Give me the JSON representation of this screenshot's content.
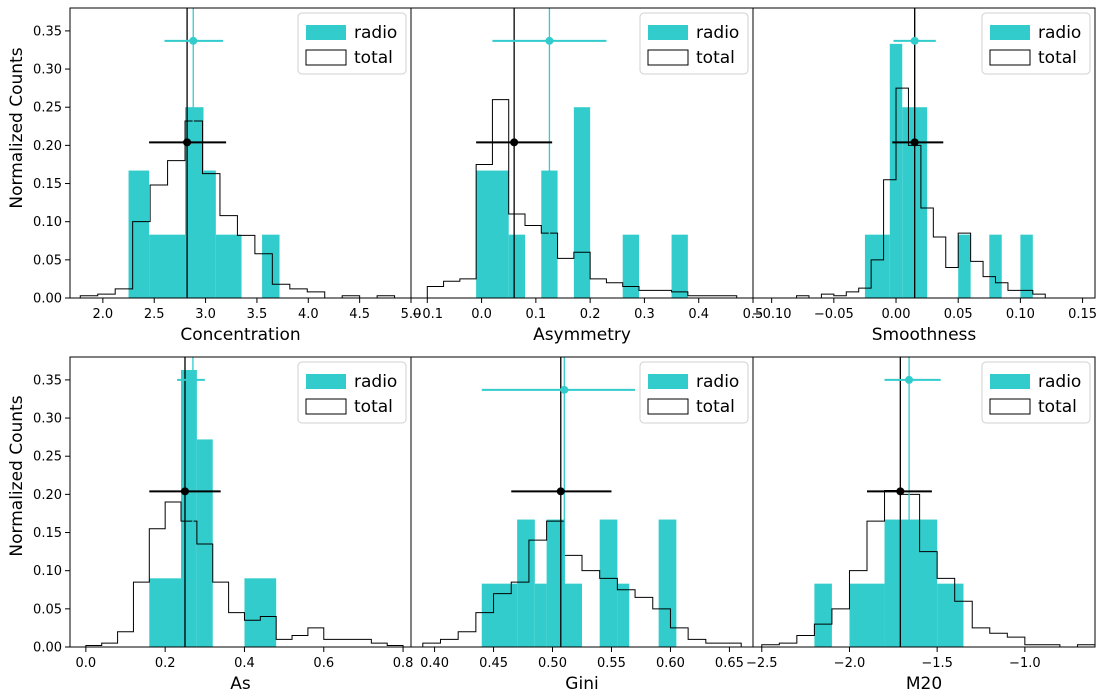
{
  "colors": {
    "radio": "#33cccc",
    "total": "#000000",
    "axis": "#000000"
  },
  "legend": {
    "radio_label": "radio",
    "total_label": "total"
  },
  "shared_ylabel": "Normalized Counts",
  "y_ticks": [
    "0.00",
    "0.05",
    "0.10",
    "0.15",
    "0.20",
    "0.25",
    "0.30",
    "0.35"
  ],
  "chart_data": [
    {
      "type": "histogram",
      "xlabel": "Concentration",
      "xlim": [
        1.68,
        5.0
      ],
      "ylim": [
        0,
        0.38
      ],
      "xticks": [
        2.0,
        2.5,
        3.0,
        3.5,
        4.0,
        4.5,
        5.0
      ],
      "xtick_labels": [
        "2.0",
        "2.5",
        "3.0",
        "3.5",
        "4.0",
        "4.5",
        "5.0"
      ],
      "radio_bars": [
        [
          2.25,
          2.45,
          0.167
        ],
        [
          2.45,
          2.8,
          0.083
        ],
        [
          2.8,
          2.98,
          0.25
        ],
        [
          2.98,
          3.1,
          0.167
        ],
        [
          3.1,
          3.35,
          0.083
        ],
        [
          3.55,
          3.72,
          0.083
        ]
      ],
      "total_edges": [
        1.78,
        1.95,
        2.12,
        2.29,
        2.46,
        2.63,
        2.8,
        2.97,
        3.14,
        3.31,
        3.48,
        3.65,
        3.82,
        3.99,
        4.16,
        4.33,
        4.5,
        4.67,
        4.84,
        5.0
      ],
      "total_counts": [
        0.003,
        0.005,
        0.012,
        0.1,
        0.148,
        0.18,
        0.232,
        0.163,
        0.108,
        0.082,
        0.058,
        0.018,
        0.012,
        0.008,
        0.0,
        0.003,
        0.0,
        0.003,
        0.0
      ],
      "radio_point": [
        2.88,
        0.337,
        2.6,
        3.17
      ],
      "total_point": [
        2.82,
        0.204,
        2.45,
        3.2
      ],
      "radio_vline": 2.88,
      "total_vline": 2.82
    },
    {
      "type": "histogram",
      "xlabel": "Asymmetry",
      "xlim": [
        -0.13,
        0.5
      ],
      "ylim": [
        0,
        0.38
      ],
      "xticks": [
        -0.1,
        0.0,
        0.1,
        0.2,
        0.3,
        0.4,
        0.5
      ],
      "xtick_labels": [
        "−0.1",
        "0.0",
        "0.1",
        "0.2",
        "0.3",
        "0.4",
        "0.5"
      ],
      "radio_bars": [
        [
          -0.01,
          0.05,
          0.167
        ],
        [
          0.05,
          0.08,
          0.083
        ],
        [
          0.11,
          0.14,
          0.167
        ],
        [
          0.17,
          0.2,
          0.25
        ],
        [
          0.26,
          0.29,
          0.083
        ],
        [
          0.35,
          0.38,
          0.083
        ]
      ],
      "total_edges": [
        -0.1,
        -0.07,
        -0.04,
        -0.01,
        0.02,
        0.05,
        0.08,
        0.11,
        0.14,
        0.17,
        0.2,
        0.23,
        0.26,
        0.29,
        0.32,
        0.35,
        0.38,
        0.41,
        0.44,
        0.47
      ],
      "total_counts": [
        0.015,
        0.022,
        0.025,
        0.175,
        0.26,
        0.11,
        0.095,
        0.085,
        0.052,
        0.06,
        0.025,
        0.02,
        0.015,
        0.01,
        0.01,
        0.008,
        0.003,
        0.003,
        0.003
      ],
      "radio_point": [
        0.125,
        0.337,
        0.02,
        0.23
      ],
      "total_point": [
        0.06,
        0.204,
        -0.01,
        0.13
      ],
      "radio_vline": 0.125,
      "total_vline": 0.06
    },
    {
      "type": "histogram",
      "xlabel": "Smoothness",
      "xlim": [
        -0.115,
        0.16
      ],
      "ylim": [
        0,
        0.38
      ],
      "xticks": [
        -0.1,
        -0.05,
        0.0,
        0.05,
        0.1,
        0.15
      ],
      "xtick_labels": [
        "−0.10",
        "−0.05",
        "0.00",
        "0.05",
        "0.10",
        "0.15"
      ],
      "radio_bars": [
        [
          -0.025,
          -0.005,
          0.083
        ],
        [
          -0.005,
          0.005,
          0.333
        ],
        [
          0.005,
          0.015,
          0.25
        ],
        [
          0.015,
          0.025,
          0.25
        ],
        [
          0.05,
          0.06,
          0.083
        ],
        [
          0.075,
          0.085,
          0.083
        ],
        [
          0.1,
          0.11,
          0.083
        ]
      ],
      "total_edges": [
        -0.08,
        -0.07,
        -0.06,
        -0.05,
        -0.04,
        -0.03,
        -0.02,
        -0.01,
        0.0,
        0.01,
        0.02,
        0.03,
        0.04,
        0.05,
        0.06,
        0.07,
        0.08,
        0.09,
        0.1,
        0.11,
        0.12
      ],
      "total_counts": [
        0.003,
        0.0,
        0.005,
        0.003,
        0.008,
        0.013,
        0.05,
        0.155,
        0.275,
        0.2,
        0.118,
        0.08,
        0.04,
        0.085,
        0.048,
        0.028,
        0.02,
        0.01,
        0.01,
        0.005
      ],
      "radio_point": [
        0.015,
        0.337,
        -0.002,
        0.032
      ],
      "total_point": [
        0.015,
        0.204,
        -0.003,
        0.038
      ],
      "radio_vline": 0.015,
      "total_vline": 0.015
    },
    {
      "type": "histogram",
      "xlabel": "As",
      "xlim": [
        -0.04,
        0.82
      ],
      "ylim": [
        0,
        0.38
      ],
      "xticks": [
        0.0,
        0.2,
        0.4,
        0.6,
        0.8
      ],
      "xtick_labels": [
        "0.0",
        "0.2",
        "0.4",
        "0.6",
        "0.8"
      ],
      "radio_bars": [
        [
          0.16,
          0.24,
          0.09
        ],
        [
          0.24,
          0.28,
          0.363
        ],
        [
          0.28,
          0.32,
          0.272
        ],
        [
          0.4,
          0.48,
          0.09
        ]
      ],
      "total_edges": [
        0.0,
        0.04,
        0.08,
        0.12,
        0.16,
        0.2,
        0.24,
        0.28,
        0.32,
        0.36,
        0.4,
        0.44,
        0.48,
        0.52,
        0.56,
        0.6,
        0.64,
        0.68,
        0.72,
        0.76,
        0.8
      ],
      "total_counts": [
        0.002,
        0.005,
        0.02,
        0.085,
        0.155,
        0.19,
        0.165,
        0.135,
        0.085,
        0.045,
        0.035,
        0.04,
        0.01,
        0.015,
        0.025,
        0.01,
        0.01,
        0.01,
        0.005,
        0.002
      ],
      "radio_point": [
        0.27,
        0.35,
        0.23,
        0.3
      ],
      "total_point": [
        0.25,
        0.204,
        0.16,
        0.34
      ],
      "radio_vline": 0.27,
      "total_vline": 0.25
    },
    {
      "type": "histogram",
      "xlabel": "Gini",
      "xlim": [
        0.38,
        0.67
      ],
      "ylim": [
        0,
        0.38
      ],
      "xticks": [
        0.4,
        0.45,
        0.5,
        0.55,
        0.6,
        0.65
      ],
      "xtick_labels": [
        "0.40",
        "0.45",
        "0.50",
        "0.55",
        "0.60",
        "0.65"
      ],
      "radio_bars": [
        [
          0.44,
          0.47,
          0.083
        ],
        [
          0.47,
          0.485,
          0.167
        ],
        [
          0.485,
          0.495,
          0.083
        ],
        [
          0.495,
          0.51,
          0.167
        ],
        [
          0.51,
          0.525,
          0.083
        ],
        [
          0.54,
          0.555,
          0.167
        ],
        [
          0.555,
          0.565,
          0.083
        ],
        [
          0.59,
          0.605,
          0.167
        ]
      ],
      "total_edges": [
        0.39,
        0.405,
        0.42,
        0.435,
        0.45,
        0.465,
        0.48,
        0.495,
        0.51,
        0.525,
        0.54,
        0.555,
        0.57,
        0.585,
        0.6,
        0.615,
        0.63,
        0.645,
        0.66
      ],
      "total_counts": [
        0.005,
        0.01,
        0.02,
        0.045,
        0.07,
        0.085,
        0.14,
        0.165,
        0.12,
        0.1,
        0.09,
        0.075,
        0.065,
        0.05,
        0.025,
        0.01,
        0.005,
        0.005
      ],
      "radio_point": [
        0.51,
        0.337,
        0.44,
        0.57
      ],
      "total_point": [
        0.507,
        0.204,
        0.465,
        0.55
      ],
      "radio_vline": 0.51,
      "total_vline": 0.507
    },
    {
      "type": "histogram",
      "xlabel": "M20",
      "xlim": [
        -2.55,
        -0.6
      ],
      "ylim": [
        0,
        0.38
      ],
      "xticks": [
        -2.5,
        -2.0,
        -1.5,
        -1.0
      ],
      "xtick_labels": [
        "−2.5",
        "−2.0",
        "−1.5",
        "−1.0"
      ],
      "radio_bars": [
        [
          -2.2,
          -2.1,
          0.083
        ],
        [
          -2.0,
          -1.8,
          0.083
        ],
        [
          -1.8,
          -1.5,
          0.167
        ],
        [
          -1.5,
          -1.35,
          0.083
        ]
      ],
      "total_edges": [
        -2.5,
        -2.4,
        -2.3,
        -2.2,
        -2.1,
        -2.0,
        -1.9,
        -1.8,
        -1.7,
        -1.6,
        -1.5,
        -1.4,
        -1.3,
        -1.2,
        -1.1,
        -1.0,
        -0.9,
        -0.8,
        -0.7,
        -0.6
      ],
      "total_counts": [
        0.003,
        0.005,
        0.015,
        0.03,
        0.05,
        0.1,
        0.165,
        0.205,
        0.2,
        0.125,
        0.09,
        0.06,
        0.025,
        0.018,
        0.013,
        0.003,
        0.003,
        0.0,
        0.003
      ],
      "radio_point": [
        -1.66,
        0.35,
        -1.8,
        -1.48
      ],
      "total_point": [
        -1.71,
        0.204,
        -1.9,
        -1.53
      ],
      "radio_vline": -1.66,
      "total_vline": -1.71
    }
  ]
}
